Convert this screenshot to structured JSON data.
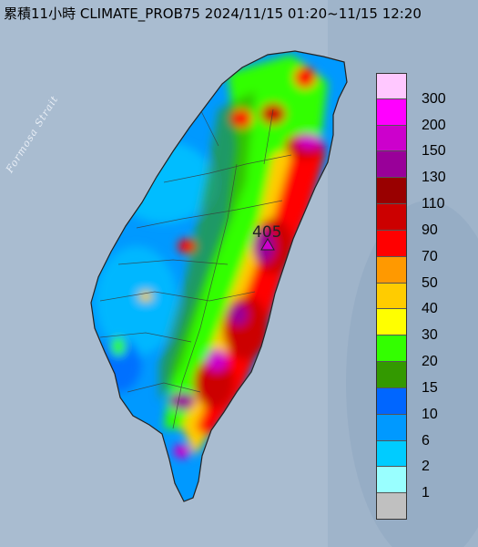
{
  "title": "累積11小時 CLIMATE_PROB75 2024/11/15 01:20~11/15 12:20",
  "strait_label": "Formosa Strait",
  "max_value_label": "405",
  "legend": {
    "items": [
      {
        "label": "300",
        "color": "#ffc8ff"
      },
      {
        "label": "200",
        "color": "#ff00ff"
      },
      {
        "label": "150",
        "color": "#cc00cc"
      },
      {
        "label": "130",
        "color": "#990099"
      },
      {
        "label": "110",
        "color": "#990000"
      },
      {
        "label": "90",
        "color": "#cc0000"
      },
      {
        "label": "70",
        "color": "#ff0000"
      },
      {
        "label": "50",
        "color": "#ff9900"
      },
      {
        "label": "40",
        "color": "#ffcc00"
      },
      {
        "label": "30",
        "color": "#ffff00"
      },
      {
        "label": "20",
        "color": "#33ff00"
      },
      {
        "label": "15",
        "color": "#339900"
      },
      {
        "label": "10",
        "color": "#0066ff"
      },
      {
        "label": "6",
        "color": "#0099ff"
      },
      {
        "label": "2",
        "color": "#00ccff"
      },
      {
        "label": "1",
        "color": "#99ffff"
      },
      {
        "label": "",
        "color": "#c0c0c0"
      }
    ]
  },
  "colors": {
    "ocean": "#a9bcd0",
    "coast": "#2a2a2a"
  }
}
